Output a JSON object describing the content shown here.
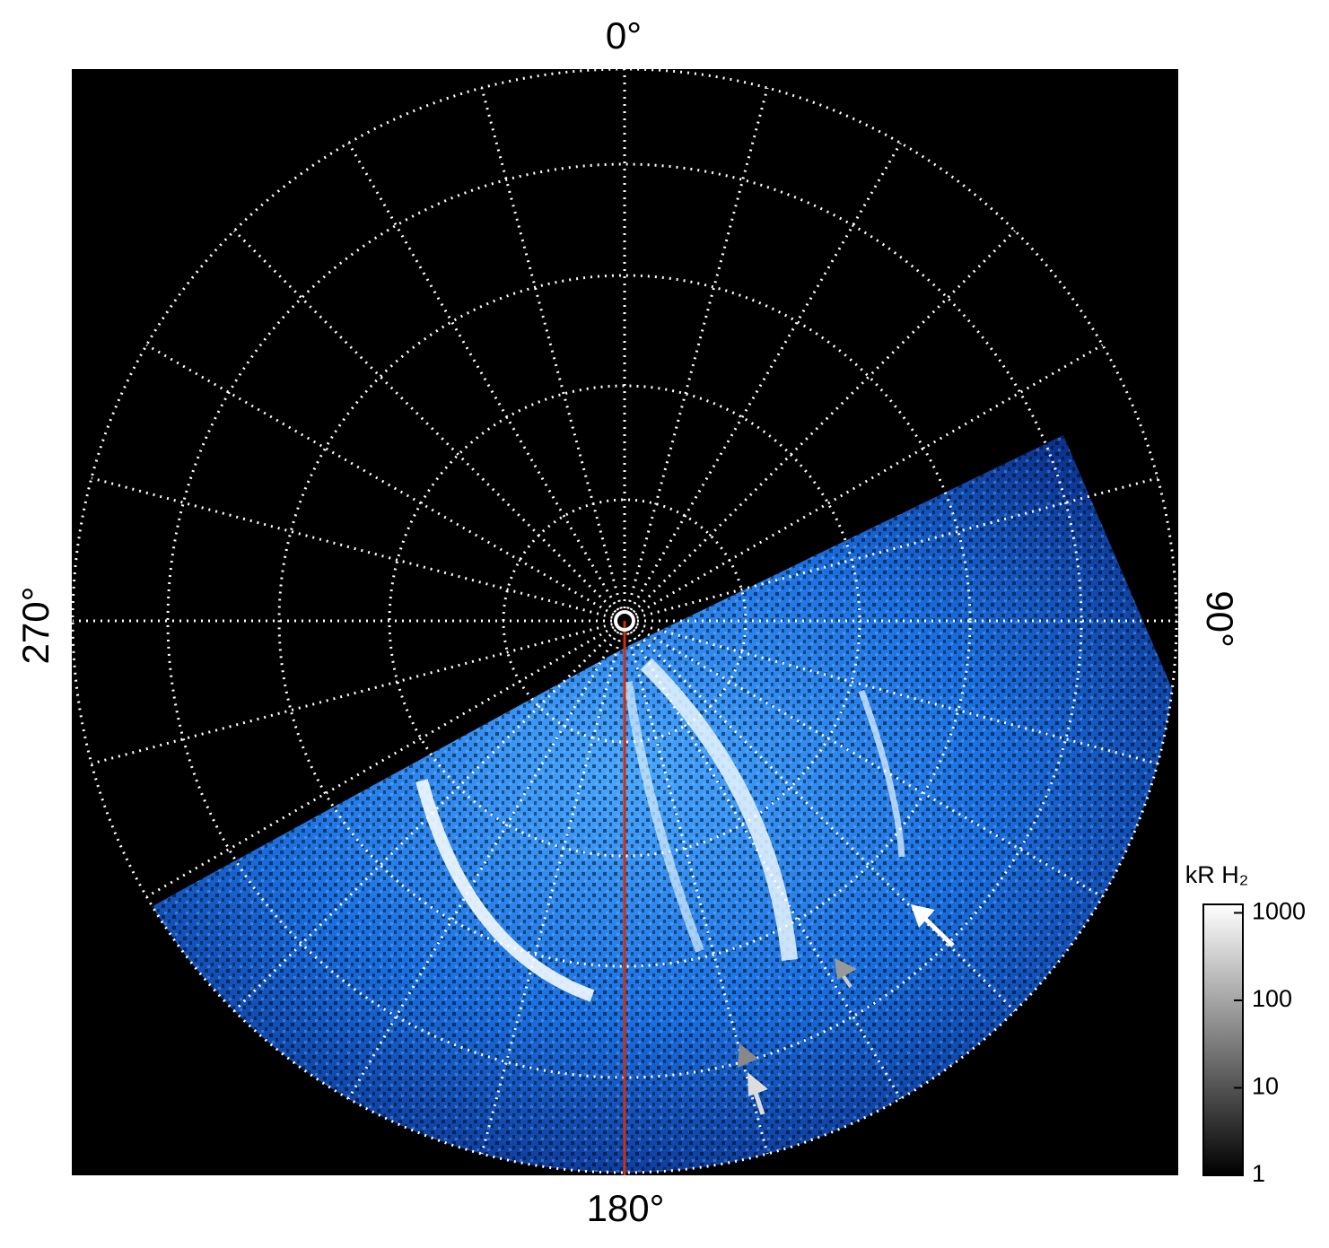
{
  "labels": {
    "top": "0°",
    "right": "90°",
    "bottom": "180°",
    "left": "270°"
  },
  "colorbar": {
    "title": "kR H₂",
    "scale": "log",
    "lim": [
      1,
      1250
    ],
    "ticks": [
      1,
      10,
      100,
      1000
    ]
  }
}
